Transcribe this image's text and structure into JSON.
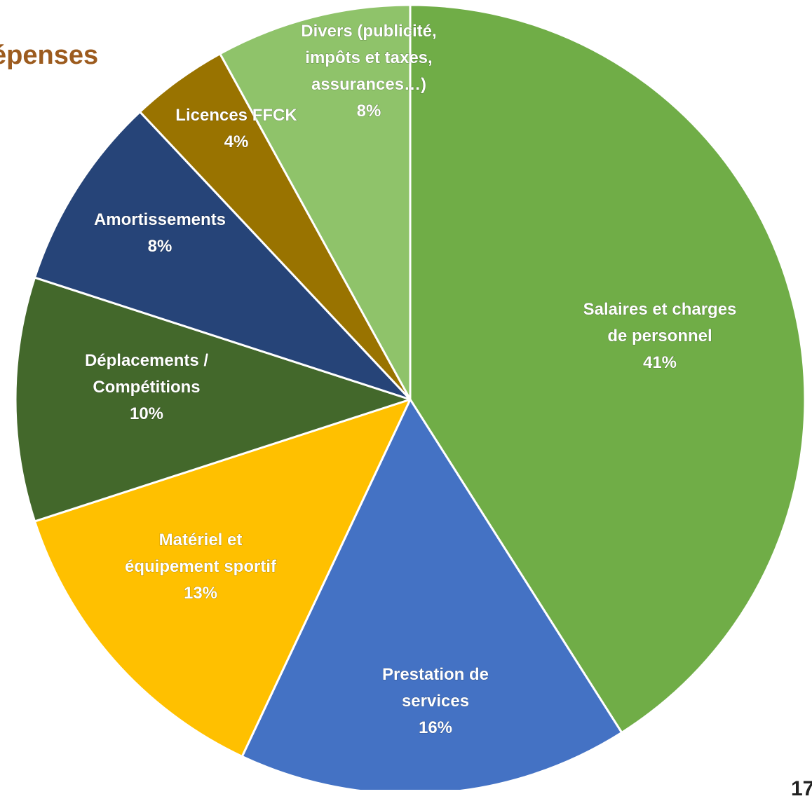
{
  "slide": {
    "title": "épenses",
    "title_color": "#9C5B1E",
    "page_number": "17"
  },
  "chart_data": {
    "type": "pie",
    "title": "",
    "start_angle_deg": 0,
    "direction": "clockwise",
    "slices": [
      {
        "label_lines": [
          "Salaires et charges",
          "de personnel"
        ],
        "percent_label": "41%",
        "value": 41,
        "color": "#70AD47"
      },
      {
        "label_lines": [
          "Prestation de",
          "services"
        ],
        "percent_label": "16%",
        "value": 16,
        "color": "#4472C4"
      },
      {
        "label_lines": [
          "Matériel et",
          "équipement sportif"
        ],
        "percent_label": "13%",
        "value": 13,
        "color": "#FFC000"
      },
      {
        "label_lines": [
          "Déplacements /",
          "Compétitions"
        ],
        "percent_label": "10%",
        "value": 10,
        "color": "#43682B"
      },
      {
        "label_lines": [
          "Amortissements"
        ],
        "percent_label": "8%",
        "value": 8,
        "color": "#264478"
      },
      {
        "label_lines": [
          "Licences FFCK"
        ],
        "percent_label": "4%",
        "value": 4,
        "color": "#997300"
      },
      {
        "label_lines": [
          "Divers (publicité,",
          "impôts et taxes,",
          "assurances…)"
        ],
        "percent_label": "8%",
        "value": 8,
        "color": "#8FC36A"
      }
    ]
  }
}
